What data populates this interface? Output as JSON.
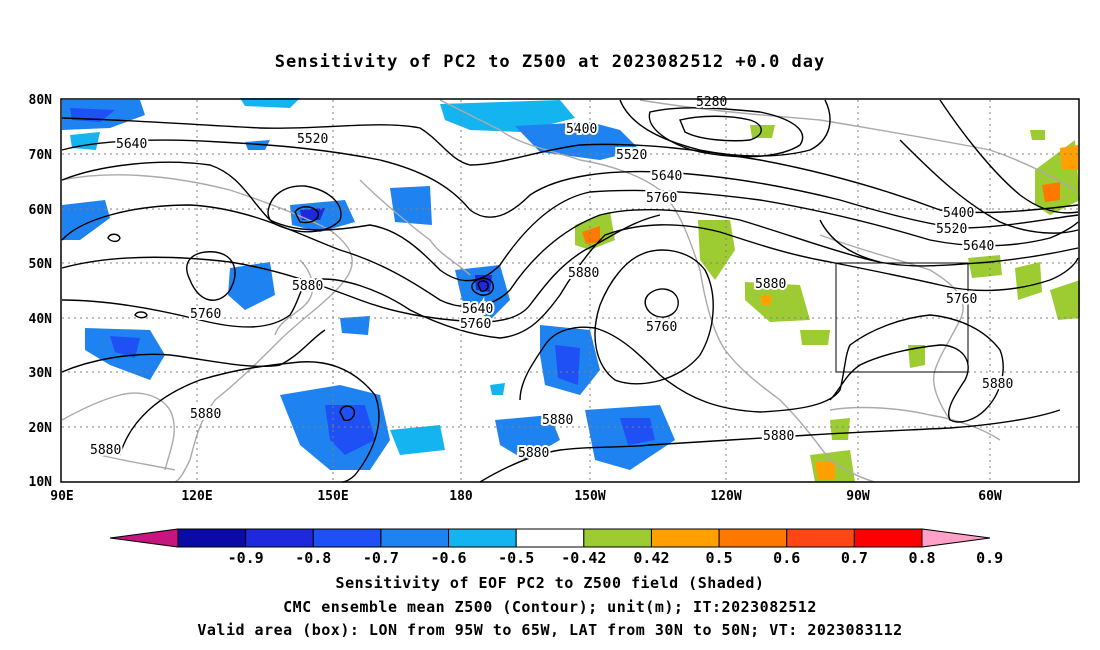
{
  "title": "Sensitivity of PC2 to Z500 at 2023082512 +0.0 day",
  "lat_labels": [
    "80N",
    "70N",
    "60N",
    "50N",
    "40N",
    "30N",
    "20N",
    "10N"
  ],
  "lon_labels": [
    "90E",
    "120E",
    "150E",
    "180",
    "150W",
    "120W",
    "90W",
    "60W"
  ],
  "contour_labels": [
    {
      "text": "5640",
      "id": "c5640a"
    },
    {
      "text": "5520",
      "id": "c5520a"
    },
    {
      "text": "5400",
      "id": "c5400a"
    },
    {
      "text": "5280",
      "id": "c5280"
    },
    {
      "text": "5520",
      "id": "c5520b"
    },
    {
      "text": "5640",
      "id": "c5640b"
    },
    {
      "text": "5760",
      "id": "c5760a"
    },
    {
      "text": "5400",
      "id": "c5400b"
    },
    {
      "text": "5520",
      "id": "c5520c"
    },
    {
      "text": "5640",
      "id": "c5640c"
    },
    {
      "text": "5760",
      "id": "c5760b"
    },
    {
      "text": "5880",
      "id": "c5880a"
    },
    {
      "text": "5760",
      "id": "c5760c"
    },
    {
      "text": "5880",
      "id": "c5880b"
    },
    {
      "text": "5640",
      "id": "c5640d"
    },
    {
      "text": "5760",
      "id": "c5760d"
    },
    {
      "text": "5880",
      "id": "c5880c"
    },
    {
      "text": "5760",
      "id": "c5760e"
    },
    {
      "text": "5880",
      "id": "c5880d"
    },
    {
      "text": "5880",
      "id": "c5880e"
    },
    {
      "text": "5880",
      "id": "c5880f"
    },
    {
      "text": "5880",
      "id": "c5880g"
    },
    {
      "text": "5880",
      "id": "c5880h"
    },
    {
      "text": "5880",
      "id": "c5880i"
    }
  ],
  "colorbar": {
    "labels": [
      "-0.9",
      "-0.8",
      "-0.7",
      "-0.6",
      "-0.5",
      "-0.42",
      "0.42",
      "0.5",
      "0.6",
      "0.7",
      "0.8",
      "0.9"
    ],
    "colors": [
      "#c8147f",
      "#0a0aa6",
      "#1e28dc",
      "#1e50f5",
      "#1e82f0",
      "#14b4f0",
      "#ffffff",
      "#9ccc32",
      "#ffa000",
      "#ff7800",
      "#ff4614",
      "#ff0000",
      "#ffa0c8"
    ]
  },
  "valid_box": {
    "lon_from": "95W",
    "lon_to": "65W",
    "lat_from": "30N",
    "lat_to": "50N"
  },
  "captions": {
    "line1": "Sensitivity of EOF PC2 to Z500 field (Shaded)",
    "line2": "CMC ensemble mean Z500 (Contour); unit(m); IT:2023082512",
    "line3": "Valid area (box): LON from 95W to 65W, LAT from 30N to 50N; VT: 2023083112"
  }
}
